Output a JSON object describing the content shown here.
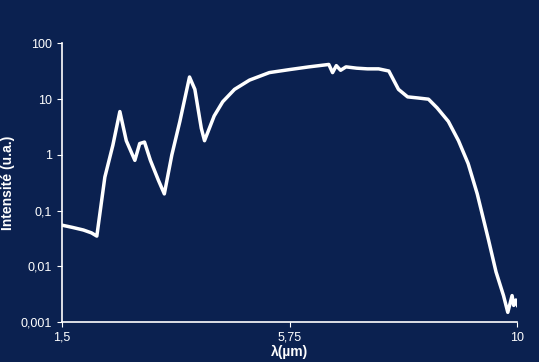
{
  "chart_data": {
    "type": "line",
    "x_label": "λ(µm)",
    "y_label": "Intensité (u.a.)",
    "color": "#ffffff",
    "log": "y",
    "grid": false,
    "x": [
      1.5,
      1.7,
      1.9,
      2.05,
      2.15,
      2.3,
      2.45,
      2.58,
      2.7,
      2.86,
      2.95,
      3.04,
      3.15,
      3.3,
      3.41,
      3.55,
      3.7,
      3.88,
      3.98,
      4.1,
      4.16,
      4.25,
      4.34,
      4.5,
      4.72,
      5.0,
      5.37,
      5.75,
      6.11,
      6.3,
      6.48,
      6.55,
      6.62,
      6.7,
      6.8,
      7.0,
      7.2,
      7.41,
      7.6,
      7.78,
      7.95,
      8.15,
      8.34,
      8.5,
      8.71,
      8.9,
      9.08,
      9.25,
      9.46,
      9.6,
      9.74,
      9.82,
      9.9,
      9.93,
      9.97,
      10.0
    ],
    "values": [
      0.055,
      0.05,
      0.045,
      0.04,
      0.035,
      0.4,
      1.5,
      6.0,
      1.8,
      0.8,
      1.6,
      1.7,
      0.8,
      0.35,
      0.2,
      1.0,
      4.0,
      25,
      15,
      3.0,
      1.8,
      3.0,
      5.0,
      9.0,
      15,
      22,
      30,
      34,
      38,
      40,
      42,
      30,
      40,
      33,
      38,
      36,
      35,
      35,
      32,
      15,
      11,
      10.5,
      10,
      7.0,
      4.0,
      1.8,
      0.7,
      0.2,
      0.03,
      0.008,
      0.003,
      0.0015,
      0.003,
      0.002,
      0.0025,
      0.002
    ],
    "xlim": [
      1.5,
      10
    ],
    "xticks": [
      {
        "value": 1.5,
        "label": "1,5"
      },
      {
        "value": 5.75,
        "label": "5,75"
      },
      10
    ],
    "ylim": [
      0.001,
      100
    ],
    "yticks": [
      {
        "value": 0.001,
        "label": "0,001"
      },
      {
        "value": 0.01,
        "label": "0,01"
      },
      {
        "value": 0.1,
        "label": "0,1"
      },
      1,
      10,
      100
    ]
  }
}
